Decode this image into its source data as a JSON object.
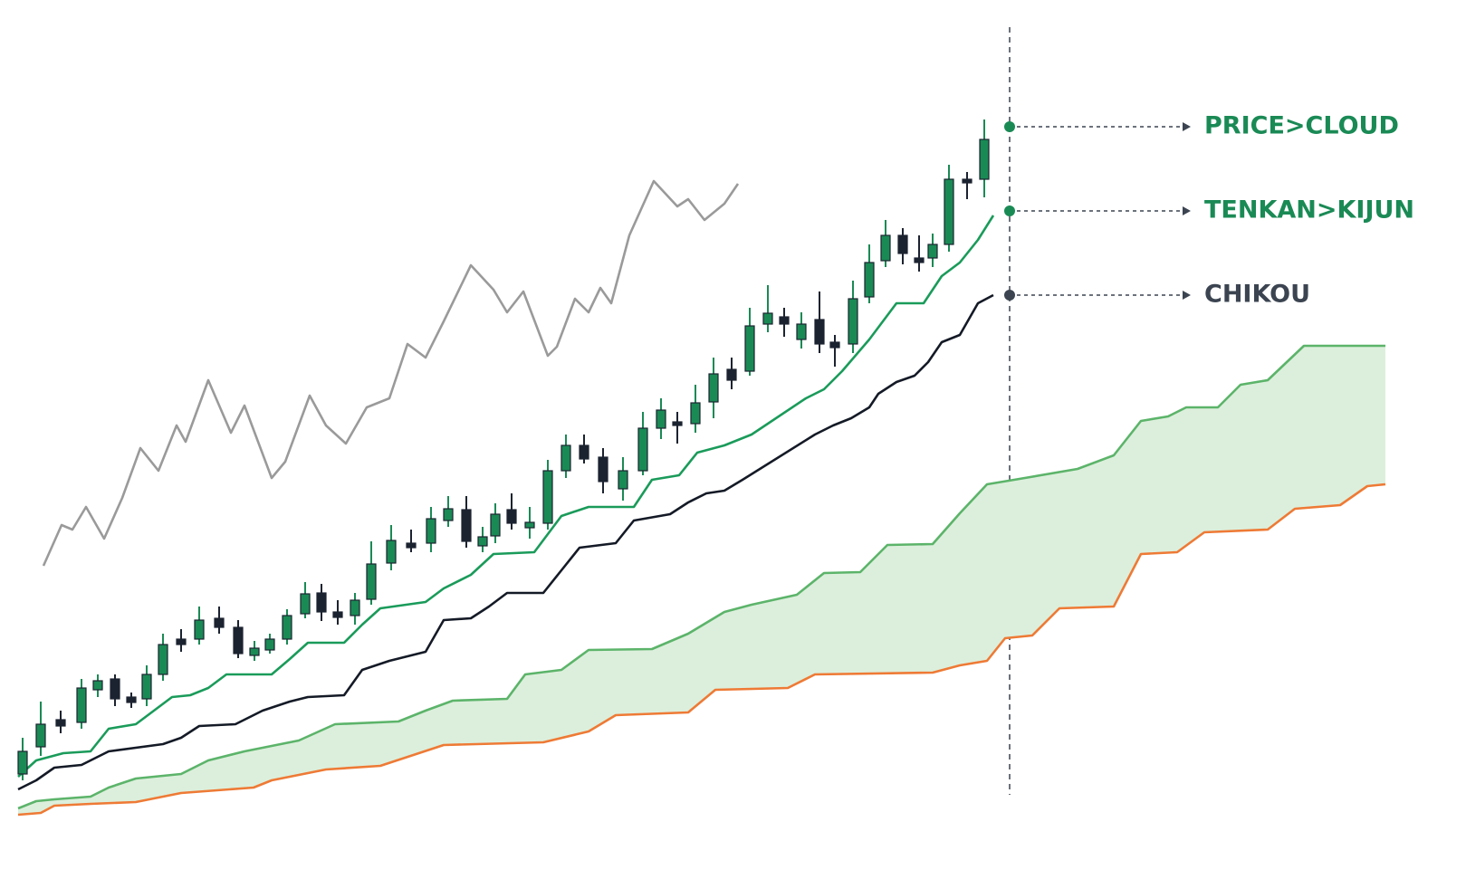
{
  "chart_data": {
    "type": "candlestick",
    "xlim": [
      0,
      151
    ],
    "ylim": [
      0,
      97
    ],
    "up_color": "#1a8a55",
    "down_color": "#1c2330",
    "x": [
      0.5,
      2.5,
      4.7,
      7.0,
      8.8,
      10.7,
      12.5,
      14.2,
      16.0,
      18.0,
      20.0,
      22.2,
      24.3,
      26.1,
      27.8,
      29.7,
      31.7,
      33.5,
      35.3,
      37.2,
      39.0,
      41.2,
      43.4,
      45.6,
      47.5,
      49.5,
      51.3,
      52.7,
      54.5,
      56.5,
      58.5,
      60.5,
      62.5,
      64.6,
      66.8,
      69.0,
      71.0,
      72.8,
      74.8,
      76.8,
      78.8,
      80.8,
      82.8,
      84.6,
      86.5,
      88.5,
      90.2,
      92.2,
      94.0,
      95.8,
      97.7,
      99.5,
      101.0,
      102.8,
      104.8,
      106.7
    ],
    "open": [
      11.5,
      14.5,
      17.5,
      17.2,
      20.8,
      22.0,
      20.0,
      19.8,
      22.5,
      26.4,
      26.4,
      28.7,
      27.7,
      24.6,
      25.2,
      26.4,
      29.2,
      31.5,
      29.4,
      29.0,
      30.8,
      34.8,
      37.0,
      37.0,
      39.5,
      40.7,
      36.7,
      37.8,
      40.7,
      38.7,
      39.2,
      45.0,
      47.8,
      46.5,
      43.0,
      45.0,
      49.7,
      50.4,
      50.2,
      52.6,
      56.2,
      56.0,
      61.2,
      62.0,
      59.5,
      61.7,
      59.2,
      59.0,
      64.2,
      68.2,
      71.0,
      68.5,
      68.5,
      70.0,
      77.2,
      77.2
    ],
    "high": [
      15.5,
      19.5,
      18.5,
      22.0,
      22.5,
      22.5,
      20.5,
      23.5,
      27.0,
      27.5,
      30.0,
      30.0,
      28.5,
      26.2,
      27.0,
      29.7,
      32.7,
      32.5,
      30.7,
      31.5,
      37.2,
      39.0,
      38.5,
      41.0,
      42.2,
      42.2,
      38.8,
      41.4,
      42.5,
      41.0,
      46.2,
      49.0,
      49.0,
      47.5,
      46.5,
      51.5,
      53.0,
      51.5,
      54.5,
      57.5,
      57.5,
      63.0,
      65.5,
      63.0,
      62.5,
      64.8,
      60.0,
      66.0,
      70.0,
      72.7,
      71.8,
      71.0,
      71.2,
      78.8,
      78.0,
      83.8
    ],
    "low": [
      10.8,
      13.5,
      16.0,
      16.5,
      20.0,
      19.0,
      18.8,
      19.0,
      21.8,
      25.0,
      25.8,
      27.0,
      24.3,
      24.0,
      24.8,
      25.8,
      28.7,
      28.4,
      28.0,
      28.0,
      30.2,
      34.0,
      36.0,
      36.0,
      38.8,
      36.5,
      36.0,
      37.0,
      38.5,
      37.5,
      38.5,
      44.2,
      45.8,
      42.5,
      41.7,
      44.5,
      48.5,
      48.0,
      49.2,
      50.8,
      54.0,
      55.5,
      60.3,
      59.8,
      58.5,
      58.0,
      56.5,
      58.0,
      63.5,
      67.5,
      67.8,
      67.0,
      67.5,
      69.2,
      75.0,
      75.2
    ],
    "close": [
      14.0,
      17.0,
      16.8,
      21.0,
      21.8,
      19.8,
      19.4,
      22.5,
      25.8,
      25.8,
      28.5,
      27.7,
      24.8,
      25.4,
      26.4,
      29.0,
      31.4,
      29.4,
      28.8,
      30.7,
      34.7,
      37.3,
      36.5,
      39.7,
      40.8,
      37.2,
      37.7,
      40.2,
      39.2,
      39.3,
      45.0,
      47.8,
      46.3,
      43.8,
      45.0,
      49.7,
      51.7,
      50.0,
      52.5,
      55.7,
      55.0,
      61.0,
      62.4,
      61.2,
      61.2,
      59.0,
      58.6,
      64.0,
      68.0,
      71.0,
      69.0,
      68.0,
      70.0,
      77.2,
      76.8,
      81.6
    ],
    "cloud_color": "#dcefdc",
    "series": [
      {
        "color": "#1a9b5a",
        "x": [
          0,
          2,
          5,
          8,
          10,
          13,
          15,
          17,
          19,
          21,
          23,
          28,
          30,
          32,
          36,
          38,
          40,
          45,
          47,
          50,
          52.5,
          57,
          60,
          63,
          68,
          70,
          73,
          75,
          78,
          81,
          87,
          89,
          91,
          94,
          97,
          100,
          102,
          104,
          106,
          107.7
        ],
        "values": [
          11.2,
          13.0,
          13.8,
          14.0,
          16.5,
          17.0,
          18.5,
          20.0,
          20.2,
          21.0,
          22.5,
          22.5,
          24.2,
          26.0,
          26.0,
          28.0,
          29.8,
          30.5,
          32.0,
          33.5,
          35.8,
          36.0,
          40.0,
          41.0,
          41.0,
          44.0,
          44.5,
          47.0,
          47.8,
          49.0,
          53.0,
          54.0,
          56.0,
          59.5,
          63.5,
          63.5,
          66.5,
          68.0,
          70.5,
          73.2
        ]
      },
      {
        "color": "#141a26",
        "x": [
          0,
          2,
          4,
          7,
          10,
          16,
          18,
          20,
          24,
          27,
          30,
          32,
          36,
          38,
          41,
          45,
          47,
          50,
          52,
          54,
          58,
          60,
          62,
          66,
          68,
          72,
          74,
          76,
          78,
          80,
          88,
          90,
          92,
          94,
          95,
          97,
          99,
          100.5,
          102,
          104,
          106,
          107.7
        ],
        "values": [
          9.8,
          10.8,
          12.2,
          12.5,
          14.0,
          14.8,
          15.5,
          16.8,
          17.0,
          18.5,
          19.5,
          20.0,
          20.2,
          23.0,
          24.0,
          25.0,
          28.5,
          28.7,
          30.0,
          31.5,
          31.5,
          34.0,
          36.5,
          37.0,
          39.5,
          40.2,
          41.5,
          42.5,
          42.8,
          44.0,
          49.0,
          50.0,
          50.8,
          52.0,
          53.5,
          54.8,
          55.5,
          57.0,
          59.2,
          60.0,
          63.5,
          64.4
        ]
      },
      {
        "color": "#9a9a9a",
        "x": [
          2.8,
          4.8,
          6,
          7.5,
          9.5,
          11.5,
          13.5,
          15.5,
          17.5,
          18.5,
          21,
          23.5,
          25,
          28,
          29.5,
          32.2,
          34,
          36.2,
          38.5,
          41,
          43,
          45,
          47,
          50,
          52.5,
          54,
          55.8,
          58.5,
          59.5,
          61.5,
          63,
          64.3,
          65.5,
          67.5,
          70.2,
          72.8,
          74,
          75.8,
          78,
          79.5
        ],
        "values": [
          34.5,
          39.0,
          38.5,
          41.0,
          37.5,
          42.0,
          47.5,
          45.0,
          50.0,
          48.2,
          55.0,
          49.2,
          52.2,
          44.2,
          46.0,
          53.3,
          50.0,
          48.0,
          52.0,
          53.0,
          59.0,
          57.5,
          61.5,
          67.7,
          65.0,
          62.5,
          64.8,
          57.7,
          58.7,
          64.0,
          62.5,
          65.2,
          63.5,
          71.0,
          77.0,
          74.2,
          75.0,
          72.7,
          74.5,
          76.7
        ]
      },
      {
        "color": "#5cb46a",
        "x": [
          0,
          2,
          4,
          8,
          10,
          13,
          18,
          21,
          25,
          31,
          35,
          42,
          45,
          48,
          54,
          56,
          60,
          63,
          70,
          74,
          78,
          81,
          86,
          89,
          93,
          96,
          101,
          104,
          107,
          110,
          117,
          121,
          124,
          127,
          129,
          132.5,
          135,
          138,
          142,
          151
        ],
        "values": [
          7.7,
          8.5,
          8.7,
          9.0,
          10.0,
          11.0,
          11.5,
          13.0,
          14.0,
          15.2,
          17.0,
          17.3,
          18.5,
          19.6,
          19.8,
          22.5,
          23.0,
          25.2,
          25.3,
          27.0,
          29.4,
          30.2,
          31.3,
          33.7,
          33.8,
          36.8,
          36.9,
          40.3,
          43.5,
          44.0,
          45.2,
          46.7,
          50.5,
          51.0,
          52.0,
          52.0,
          54.5,
          55.0,
          58.8,
          58.8
        ]
      },
      {
        "color": "#ee7a35",
        "x": [
          0,
          2.5,
          4,
          8,
          13,
          18,
          26,
          28,
          34,
          40,
          47,
          58,
          63,
          66,
          74,
          77,
          85,
          88,
          101,
          104,
          107,
          109,
          112,
          115,
          121,
          124,
          128,
          131,
          138,
          141,
          146,
          149,
          151
        ],
        "values": [
          7.0,
          7.2,
          8.0,
          8.2,
          8.4,
          9.4,
          10.0,
          10.8,
          12.0,
          12.4,
          14.7,
          15.0,
          16.2,
          18.0,
          18.3,
          20.8,
          21.0,
          22.5,
          22.7,
          23.5,
          24.0,
          26.5,
          26.8,
          29.8,
          30.0,
          35.8,
          36.0,
          38.2,
          38.5,
          40.8,
          41.2,
          43.3,
          43.5
        ]
      }
    ],
    "annotations": [
      {
        "text": "PRICE>CLOUD",
        "color": "#1a8a55"
      },
      {
        "text": "TENKAN>KIJUN",
        "color": "#1a8a55"
      },
      {
        "text": "CHIKOU",
        "color": "#3b4450"
      }
    ]
  }
}
